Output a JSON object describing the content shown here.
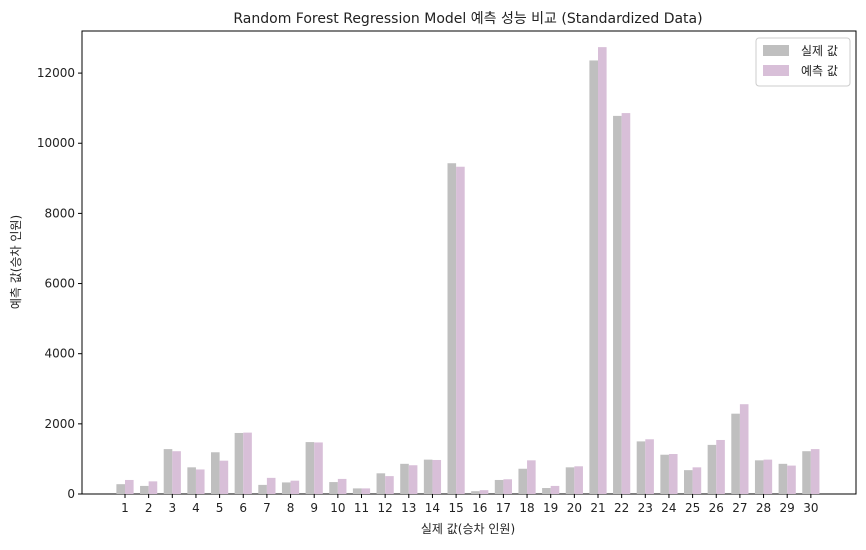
{
  "chart_data": {
    "type": "bar",
    "title": "Random Forest Regression Model 예측 성능 비교 (Standardized Data)",
    "xlabel": "실제 값(승차 인원)",
    "ylabel": "예측 값(승차 인원)",
    "categories": [
      "1",
      "2",
      "3",
      "4",
      "5",
      "6",
      "7",
      "8",
      "9",
      "10",
      "11",
      "12",
      "13",
      "14",
      "15",
      "16",
      "17",
      "18",
      "19",
      "20",
      "21",
      "22",
      "23",
      "24",
      "25",
      "26",
      "27",
      "28",
      "29",
      "30"
    ],
    "series": [
      {
        "name": "실제 값",
        "color": "#bfbfbf",
        "values": [
          280,
          230,
          1280,
          760,
          1190,
          1740,
          260,
          330,
          1480,
          340,
          160,
          590,
          860,
          980,
          9430,
          80,
          400,
          720,
          170,
          760,
          12360,
          10780,
          1500,
          1120,
          680,
          1400,
          2290,
          960,
          860,
          1220
        ]
      },
      {
        "name": "예측 값",
        "color": "#d8bfd8",
        "values": [
          400,
          360,
          1220,
          700,
          950,
          1750,
          460,
          380,
          1470,
          430,
          160,
          510,
          820,
          970,
          9330,
          110,
          420,
          960,
          230,
          790,
          12740,
          10860,
          1560,
          1140,
          760,
          1540,
          2560,
          980,
          810,
          1280
        ]
      }
    ],
    "ylim": [
      0,
      13200
    ],
    "yticks": [
      0,
      2000,
      4000,
      6000,
      8000,
      10000,
      12000
    ],
    "legend_position": "upper-right",
    "grid": false
  }
}
